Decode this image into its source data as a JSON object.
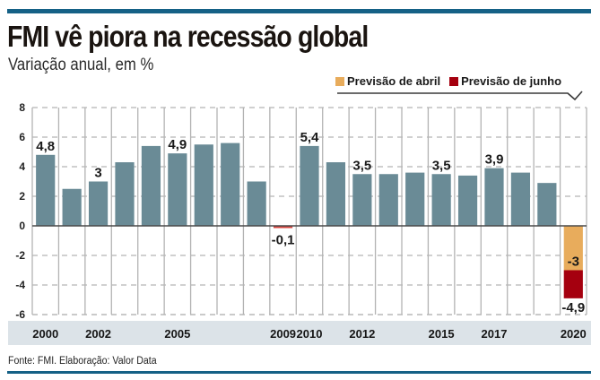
{
  "header": {
    "title": "FMI vê piora na recessão global",
    "subtitle": "Variação anual, em %"
  },
  "legend": {
    "items": [
      {
        "label": "Previsão de abril",
        "color": "#e8ac5c"
      },
      {
        "label": "Previsão de junho",
        "color": "#a5000f"
      }
    ]
  },
  "footer": {
    "source": "Fonte: FMI. Elaboração: Valor Data"
  },
  "colors": {
    "bar": "#6a8b96",
    "negative_small": "#d9463f",
    "axis_band": "#dce3e8",
    "brand": "#156186"
  },
  "chart_data": {
    "type": "bar",
    "title": "FMI vê piora na recessão global",
    "subtitle": "Variação anual, em %",
    "xlabel": "",
    "ylabel": "",
    "ylim": [
      -6,
      8
    ],
    "yticks": [
      8,
      6,
      4,
      2,
      0,
      -2,
      -4,
      -6
    ],
    "grid": true,
    "legend_position": "top-right",
    "categories": [
      "2000",
      "2001",
      "2002",
      "2003",
      "2004",
      "2005",
      "2006",
      "2007",
      "2008",
      "2009",
      "2010",
      "2011",
      "2012",
      "2013",
      "2014",
      "2015",
      "2016",
      "2017",
      "2018",
      "2019",
      "2020"
    ],
    "x_tick_labels": [
      "2000",
      "",
      "2002",
      "",
      "",
      "2005",
      "",
      "",
      "",
      "2009",
      "2010",
      "",
      "2012",
      "",
      "",
      "2015",
      "",
      "2017",
      "",
      "",
      "2020"
    ],
    "values": [
      4.8,
      2.5,
      3.0,
      4.3,
      5.4,
      4.9,
      5.5,
      5.6,
      3.0,
      -0.1,
      5.4,
      4.3,
      3.5,
      3.5,
      3.6,
      3.5,
      3.4,
      3.9,
      3.6,
      2.9,
      null
    ],
    "data_labels": [
      "4,8",
      "",
      "3",
      "",
      "",
      "4,9",
      "",
      "",
      "",
      "-0,1",
      "5,4",
      "",
      "3,5",
      "",
      "",
      "3,5",
      "",
      "3,9",
      "",
      "",
      ""
    ],
    "forecast_2020": {
      "series": [
        {
          "name": "Previsão de abril",
          "value": -3.0,
          "label": "-3"
        },
        {
          "name": "Previsão de junho",
          "value": -4.9,
          "label": "-4,9"
        }
      ]
    },
    "source": "Fonte: FMI. Elaboração: Valor Data"
  }
}
